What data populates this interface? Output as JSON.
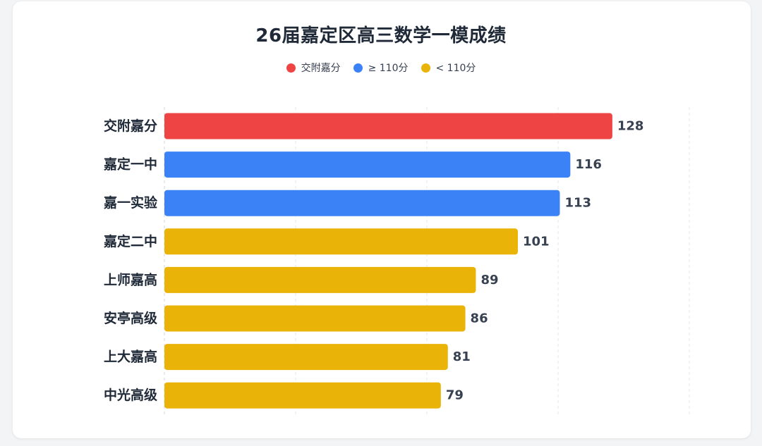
{
  "chart_data": {
    "type": "bar",
    "orientation": "horizontal",
    "title": "26届嘉定区高三数学一模成绩",
    "categories": [
      "交附嘉分",
      "嘉定一中",
      "嘉一实验",
      "嘉定二中",
      "上师嘉高",
      "安亭高级",
      "上大嘉高",
      "中光高级"
    ],
    "values": [
      128,
      116,
      113,
      101,
      89,
      86,
      81,
      79
    ],
    "groups": [
      "交附嘉分",
      "≥ 110分",
      "≥ 110分",
      "< 110分",
      "< 110分",
      "< 110分",
      "< 110分",
      "< 110分"
    ],
    "legend": [
      {
        "label": "交附嘉分",
        "color": "#ef4444"
      },
      {
        "label": "≥ 110分",
        "color": "#3b82f6"
      },
      {
        "label": "< 110分",
        "color": "#eab308"
      }
    ],
    "xlim": [
      0,
      150
    ],
    "grid": true,
    "legend_position": "top-center"
  }
}
